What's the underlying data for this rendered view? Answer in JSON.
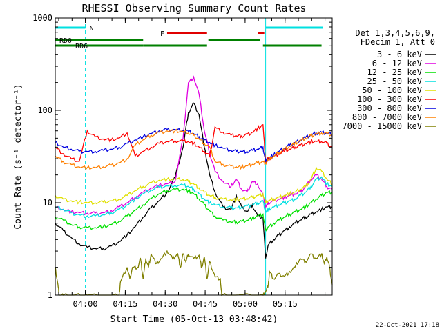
{
  "chart_data": {
    "type": "line",
    "title": "RHESSI Observing Summary Count Rates",
    "xlabel": "Start Time (05-Oct-13 03:48:42)",
    "ylabel": "Count Rate (s⁻¹ detector⁻¹)",
    "yscale": "log",
    "ylim": [
      1,
      1000
    ],
    "xlim_minutes": [
      0,
      104
    ],
    "x_ticks": [
      {
        "label": "04:00",
        "min": 11.3
      },
      {
        "label": "04:15",
        "min": 26.3
      },
      {
        "label": "04:30",
        "min": 41.3
      },
      {
        "label": "04:45",
        "min": 56.3
      },
      {
        "label": "05:00",
        "min": 71.3
      },
      {
        "label": "05:15",
        "min": 86.3
      }
    ],
    "y_ticks": [
      {
        "label": "1",
        "value": 1
      },
      {
        "label": "10",
        "value": 10
      },
      {
        "label": "100",
        "value": 100
      },
      {
        "label": "1000",
        "value": 1000
      }
    ],
    "legend_header": [
      "Det 1,3,4,5,6,9,",
      "FDecim 1, Att 0"
    ],
    "legend_position": "right",
    "series": [
      {
        "name": "3 - 6 keV",
        "color": "#000000",
        "x": [
          0,
          3,
          6,
          9,
          12,
          15,
          18,
          21,
          24,
          27,
          30,
          33,
          36,
          39,
          42,
          45,
          48,
          50,
          52,
          54,
          56,
          58,
          60,
          63,
          66,
          68,
          70,
          72,
          74,
          76,
          78,
          79,
          80,
          82,
          84,
          86,
          88,
          90,
          92,
          94,
          96,
          98,
          100,
          102,
          104
        ],
        "values": [
          6,
          5,
          4.2,
          3.6,
          3.3,
          3.2,
          3.2,
          3.4,
          3.8,
          4.5,
          5.5,
          7,
          8.8,
          10.5,
          13,
          19,
          40,
          95,
          120,
          90,
          40,
          20,
          13,
          9,
          8.5,
          12,
          9,
          8,
          9.5,
          7.2,
          7,
          2.5,
          3.5,
          4,
          4.5,
          5,
          5.5,
          6,
          6.5,
          7,
          7.5,
          8,
          8.5,
          9,
          9
        ]
      },
      {
        "name": "6 - 12 keV",
        "color": "#e000e0",
        "x": [
          0,
          3,
          6,
          9,
          12,
          15,
          18,
          21,
          24,
          27,
          30,
          33,
          36,
          39,
          42,
          45,
          48,
          50,
          52,
          54,
          56,
          58,
          60,
          63,
          66,
          68,
          70,
          72,
          74,
          76,
          78,
          79,
          80,
          82,
          84,
          86,
          88,
          90,
          92,
          94,
          96,
          98,
          100,
          102,
          104
        ],
        "values": [
          9,
          8.5,
          8,
          7.8,
          7.7,
          7.7,
          7.8,
          8.2,
          9,
          10,
          11.5,
          13,
          14.5,
          15.5,
          16,
          17,
          50,
          200,
          230,
          150,
          60,
          35,
          22,
          17,
          15,
          18,
          14,
          13,
          17,
          16,
          12,
          9,
          10,
          10.5,
          11,
          11.5,
          12,
          12.5,
          13,
          15,
          18,
          20,
          18,
          15,
          14
        ]
      },
      {
        "name": "12 - 25 keV",
        "color": "#00e000",
        "x": [
          0,
          3,
          6,
          9,
          12,
          15,
          18,
          21,
          24,
          27,
          30,
          33,
          36,
          39,
          42,
          45,
          48,
          50,
          52,
          54,
          56,
          58,
          60,
          63,
          66,
          68,
          70,
          72,
          74,
          76,
          78,
          79,
          80,
          82,
          84,
          86,
          88,
          90,
          92,
          94,
          96,
          98,
          100,
          102,
          104
        ],
        "values": [
          7,
          6.5,
          5.8,
          5.5,
          5.4,
          5.4,
          5.5,
          5.8,
          6.3,
          7.2,
          8.3,
          9.5,
          11,
          12.5,
          13.5,
          14,
          14,
          13.5,
          12.5,
          11,
          9.5,
          8.2,
          7.2,
          6.5,
          6.2,
          6.2,
          6.3,
          6.5,
          6.8,
          7.2,
          7.5,
          5,
          5.5,
          6,
          6.5,
          7,
          7.5,
          8,
          8.5,
          9,
          10,
          11,
          12,
          13,
          13
        ]
      },
      {
        "name": "25 - 50 keV",
        "color": "#00e0e0",
        "x": [
          0,
          3,
          6,
          9,
          12,
          15,
          18,
          21,
          24,
          27,
          30,
          33,
          36,
          39,
          42,
          45,
          48,
          50,
          52,
          54,
          56,
          58,
          60,
          63,
          66,
          68,
          70,
          72,
          74,
          76,
          78,
          79,
          80,
          82,
          84,
          86,
          88,
          90,
          92,
          94,
          96,
          98,
          100,
          102,
          104
        ],
        "values": [
          9,
          8.5,
          7.8,
          7.4,
          7.2,
          7.2,
          7.4,
          7.8,
          8.5,
          9.5,
          11,
          12.5,
          13.8,
          14.8,
          15.2,
          15.5,
          15.5,
          15,
          14,
          12.5,
          11,
          10,
          9.5,
          9,
          8.8,
          8.8,
          9,
          9.2,
          9.5,
          10,
          10.5,
          8,
          8.5,
          9,
          9.5,
          10,
          10.5,
          11,
          12,
          13,
          15,
          18,
          19,
          16,
          15
        ]
      },
      {
        "name": "50 - 100 keV",
        "color": "#e0e000",
        "x": [
          0,
          3,
          6,
          9,
          12,
          15,
          18,
          21,
          24,
          27,
          30,
          33,
          36,
          39,
          42,
          45,
          48,
          50,
          52,
          54,
          56,
          58,
          60,
          63,
          66,
          68,
          70,
          72,
          74,
          76,
          78,
          79,
          80,
          82,
          84,
          86,
          88,
          90,
          92,
          94,
          96,
          98,
          100,
          102,
          104
        ],
        "values": [
          12,
          11,
          10.5,
          10.2,
          10,
          10,
          10.2,
          10.5,
          11,
          12,
          13.5,
          15,
          16.5,
          17.5,
          18,
          18,
          17.8,
          17,
          16,
          14.5,
          13,
          12,
          11.5,
          11,
          10.8,
          10.8,
          11,
          11.2,
          11.5,
          12,
          12.5,
          10,
          10.5,
          11,
          11.5,
          12,
          12.5,
          13,
          14,
          15,
          18,
          24,
          22,
          18,
          16
        ]
      },
      {
        "name": "100 - 300 keV",
        "color": "#ff0000",
        "x": [
          0,
          3,
          6,
          9,
          12,
          15,
          18,
          21,
          24,
          27,
          30,
          33,
          36,
          39,
          42,
          45,
          48,
          50,
          52,
          54,
          56,
          58,
          60,
          63,
          66,
          68,
          70,
          72,
          74,
          76,
          78,
          79,
          80,
          82,
          84,
          86,
          88,
          90,
          92,
          94,
          96,
          98,
          100,
          102,
          104
        ],
        "values": [
          40,
          34,
          30,
          28,
          60,
          52,
          49,
          48,
          50,
          57,
          32,
          36,
          40,
          44,
          46,
          47,
          47,
          46,
          44,
          40,
          36,
          32,
          66,
          58,
          54,
          53,
          53,
          55,
          58,
          64,
          70,
          28,
          30,
          32,
          34,
          36,
          38,
          40,
          42,
          44,
          46,
          46,
          46,
          44,
          40
        ]
      },
      {
        "name": "300 - 800 keV",
        "color": "#0000e0",
        "x": [
          0,
          3,
          6,
          9,
          12,
          15,
          18,
          21,
          24,
          27,
          30,
          33,
          36,
          39,
          42,
          45,
          48,
          50,
          52,
          54,
          56,
          58,
          60,
          63,
          66,
          68,
          70,
          72,
          74,
          76,
          78,
          79,
          80,
          82,
          84,
          86,
          88,
          90,
          92,
          94,
          96,
          98,
          100,
          102,
          104
        ],
        "values": [
          45,
          40,
          38,
          36,
          36,
          36,
          37,
          38,
          40,
          44,
          48,
          52,
          56,
          60,
          62,
          62,
          61,
          59,
          56,
          52,
          48,
          45,
          42,
          39,
          37,
          36,
          36,
          36,
          37,
          38,
          40,
          28,
          30,
          33,
          36,
          39,
          42,
          45,
          48,
          51,
          54,
          57,
          58,
          57,
          55
        ]
      },
      {
        "name": "800 - 7000 keV",
        "color": "#ff8000",
        "x": [
          0,
          3,
          6,
          9,
          12,
          15,
          18,
          21,
          24,
          27,
          30,
          33,
          36,
          39,
          42,
          45,
          48,
          50,
          52,
          54,
          56,
          58,
          60,
          63,
          66,
          68,
          70,
          72,
          74,
          76,
          78,
          79,
          80,
          82,
          84,
          86,
          88,
          90,
          92,
          94,
          96,
          98,
          100,
          102,
          104
        ],
        "values": [
          32,
          28,
          26,
          24.5,
          24,
          24,
          24.5,
          25.5,
          27,
          30,
          42,
          48,
          54,
          58,
          60,
          60,
          59,
          57,
          54,
          49,
          44,
          40,
          28,
          26,
          25,
          24.5,
          24.5,
          25,
          26,
          27,
          28,
          27,
          29,
          32,
          35,
          38,
          41,
          44,
          47,
          50,
          53,
          56,
          57,
          56,
          54
        ]
      },
      {
        "name": "7000 - 15000 keV",
        "color": "#808000",
        "x": [
          0,
          1,
          1.5,
          3,
          6,
          10,
          12,
          20,
          24,
          24.5,
          27,
          28,
          29,
          31,
          32,
          33,
          34,
          35,
          36,
          38,
          40,
          42,
          44,
          46,
          47,
          48,
          49,
          50,
          52,
          54,
          55,
          56,
          57,
          58,
          60,
          62,
          62.5,
          66,
          75,
          78,
          79,
          80,
          80.5,
          82,
          84,
          86,
          88,
          90,
          92,
          94,
          96,
          98,
          100,
          101,
          102,
          103,
          104
        ],
        "values": [
          2,
          1.3,
          1,
          1,
          1,
          1,
          1,
          1,
          1,
          1.4,
          2,
          1.5,
          2,
          2,
          2.5,
          1.5,
          2.5,
          2,
          2.8,
          2.2,
          2.5,
          3,
          2.5,
          2.8,
          2,
          2.8,
          2.3,
          2.8,
          2.5,
          2.7,
          2,
          2.6,
          1.5,
          2.3,
          1.6,
          1.5,
          1,
          1,
          1,
          1,
          1.1,
          1.3,
          1.8,
          1.5,
          1.7,
          1.6,
          1.8,
          2,
          2.5,
          2.3,
          2.8,
          2.5,
          2.8,
          2.2,
          2.6,
          2,
          1.3
        ]
      }
    ],
    "vertical_lines": [
      {
        "label": "N",
        "color": "#00e0e0",
        "style": "dashed",
        "min": 11.3
      },
      {
        "label": "",
        "color": "#00e0e0",
        "style": "solid",
        "min": 0
      },
      {
        "label": "",
        "color": "#00e0e0",
        "style": "solid",
        "min": 79
      },
      {
        "label": "",
        "color": "#00e0e0",
        "style": "dashed",
        "min": 100.5
      }
    ],
    "flag_bars": [
      {
        "label": "N",
        "color": "#00e0e0",
        "segments": [
          [
            0,
            11.3
          ],
          [
            79,
            100.5
          ]
        ],
        "level": 1
      },
      {
        "label": "F",
        "color": "#e00000",
        "segments": [
          [
            42,
            57
          ],
          [
            76,
            78.5
          ]
        ],
        "level": 2
      },
      {
        "label": "RD0",
        "color": "#008000",
        "segments": [
          [
            0,
            6
          ],
          [
            6,
            33
          ],
          [
            57.5,
            77
          ]
        ],
        "level": 3
      },
      {
        "label": "RD6",
        "color": "#008000",
        "segments": [
          [
            0,
            33
          ],
          [
            33,
            57
          ],
          [
            78,
            100
          ]
        ],
        "level": 4
      }
    ],
    "footer_date": "22-Oct-2021 17:18"
  }
}
